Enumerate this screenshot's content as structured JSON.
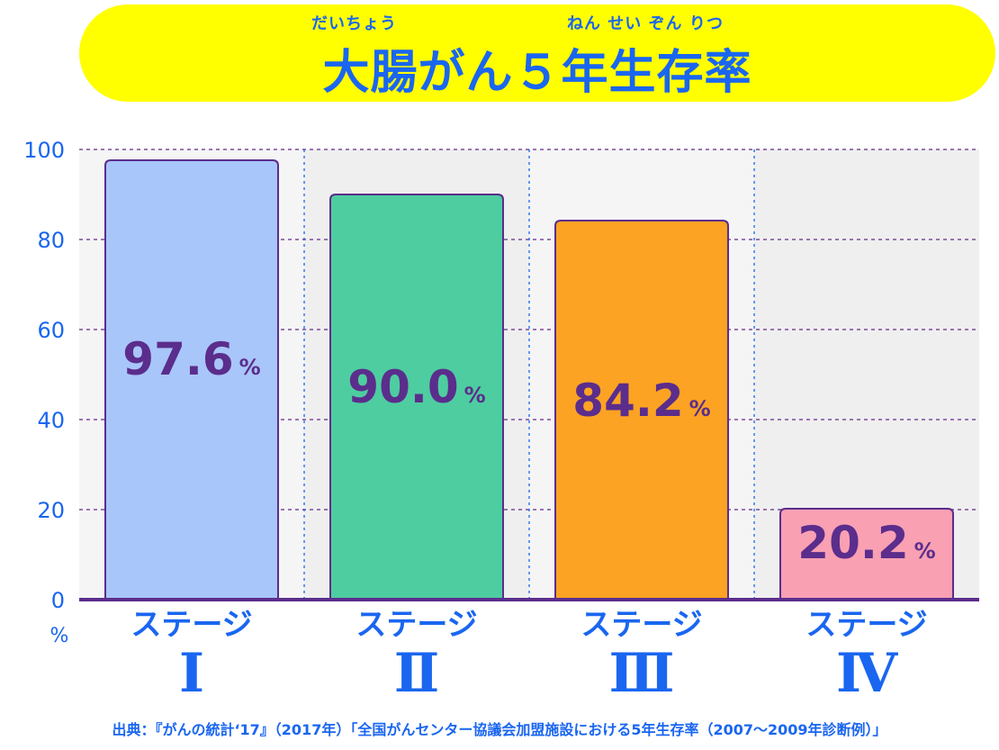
{
  "title": {
    "text": "大腸がん５年生存率",
    "ruby_1": "だいちょう",
    "ruby_2": "ねん せい ぞん りつ"
  },
  "chart_data": {
    "type": "bar",
    "categories": [
      "ステージ Ⅰ",
      "ステージ Ⅱ",
      "ステージ Ⅲ",
      "ステージ Ⅳ"
    ],
    "category_prefix": "ステージ",
    "category_numerals": [
      "Ⅰ",
      "Ⅱ",
      "Ⅲ",
      "Ⅳ"
    ],
    "values": [
      97.6,
      90.0,
      84.2,
      20.2
    ],
    "value_labels": [
      "97.6",
      "90.0",
      "84.2",
      "20.2"
    ],
    "value_unit": "%",
    "ylabel": "%",
    "ylim": [
      0,
      100
    ],
    "yticks": [
      0,
      20,
      40,
      60,
      80,
      100
    ],
    "grid": true,
    "colors": [
      "#a8c6fa",
      "#4ecda0",
      "#fca323",
      "#f9a0b3"
    ],
    "label_color": "#5b2d8c",
    "axis_color": "#1a66f0",
    "grid_color": "#7b4a9c"
  },
  "source": "出典：『がんの統計‘17』（2017年）「全国がんセンター協議会加盟施設における5年生存率（2007〜2009年診断例）」"
}
